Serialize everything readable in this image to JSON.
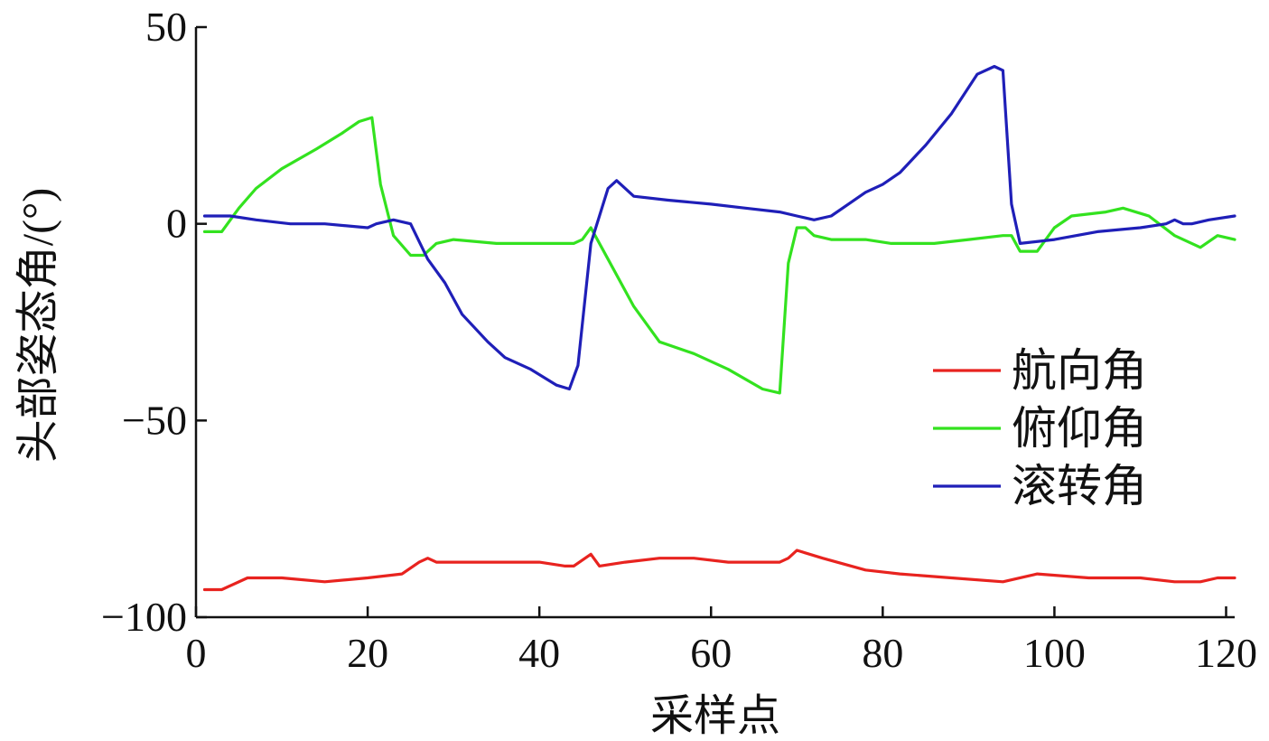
{
  "chart_data": {
    "type": "line",
    "xlabel": "采样点",
    "ylabel": "头部姿态角/(°)",
    "xlim": [
      0,
      121
    ],
    "ylim": [
      -100,
      50
    ],
    "xticks": [
      0,
      20,
      40,
      60,
      80,
      100,
      120
    ],
    "yticks": [
      -100,
      -50,
      0,
      50
    ],
    "xtick_labels": [
      "0",
      "20",
      "40",
      "60",
      "80",
      "100",
      "120"
    ],
    "ytick_labels": [
      "−100",
      "−50",
      "0",
      "50"
    ],
    "grid": false,
    "legend_position": "center-right",
    "series": [
      {
        "name": "航向角",
        "color": "#e8231f",
        "x": [
          1,
          3,
          6,
          10,
          15,
          20,
          24,
          26,
          27,
          28,
          32,
          36,
          40,
          43,
          44,
          46,
          47,
          50,
          54,
          58,
          62,
          66,
          68,
          69,
          70,
          73,
          78,
          82,
          88,
          94,
          98,
          104,
          110,
          114,
          117,
          119,
          121
        ],
        "y": [
          -93,
          -93,
          -90,
          -90,
          -91,
          -90,
          -89,
          -86,
          -85,
          -86,
          -86,
          -86,
          -86,
          -87,
          -87,
          -84,
          -87,
          -86,
          -85,
          -85,
          -86,
          -86,
          -86,
          -85,
          -83,
          -85,
          -88,
          -89,
          -90,
          -91,
          -89,
          -90,
          -90,
          -91,
          -91,
          -90,
          -90
        ]
      },
      {
        "name": "俯仰角",
        "color": "#33e21f",
        "x": [
          1,
          3,
          5,
          7,
          10,
          14,
          17,
          19,
          20.5,
          21.5,
          23,
          25,
          26.5,
          28,
          30,
          35,
          40,
          44,
          45,
          46,
          48,
          51,
          54,
          58,
          62,
          66,
          68,
          69,
          70,
          71,
          72,
          74,
          78,
          81,
          86,
          90,
          94,
          95,
          96,
          98,
          100,
          102,
          106,
          108,
          111,
          114,
          117,
          119,
          121
        ],
        "y": [
          -2,
          -2,
          4,
          9,
          14,
          19,
          23,
          26,
          27,
          10,
          -3,
          -8,
          -8,
          -5,
          -4,
          -5,
          -5,
          -5,
          -4,
          -1,
          -9,
          -21,
          -30,
          -33,
          -37,
          -42,
          -43,
          -10,
          -1,
          -1,
          -3,
          -4,
          -4,
          -5,
          -5,
          -4,
          -3,
          -3,
          -7,
          -7,
          -1,
          2,
          3,
          4,
          2,
          -3,
          -6,
          -3,
          -4
        ]
      },
      {
        "name": "滚转角",
        "color": "#1f1fb8",
        "x": [
          1,
          4,
          7,
          11,
          15,
          20,
          21,
          23,
          25,
          27,
          29,
          31,
          34,
          36,
          39,
          42,
          43.5,
          44.5,
          46,
          48,
          49,
          51,
          55,
          60,
          64,
          68,
          70,
          72,
          74,
          76,
          78,
          80,
          82,
          85,
          88,
          91,
          93,
          94,
          95,
          96,
          100,
          105,
          110,
          113,
          114,
          115,
          116,
          118,
          121
        ],
        "y": [
          2,
          2,
          1,
          0,
          0,
          -1,
          0,
          1,
          0,
          -9,
          -15,
          -23,
          -30,
          -34,
          -37,
          -41,
          -42,
          -36,
          -5,
          9,
          11,
          7,
          6,
          5,
          4,
          3,
          2,
          1,
          2,
          5,
          8,
          10,
          13,
          20,
          28,
          38,
          40,
          39,
          5,
          -5,
          -4,
          -2,
          -1,
          0,
          1,
          0,
          0,
          1,
          2
        ]
      }
    ]
  }
}
